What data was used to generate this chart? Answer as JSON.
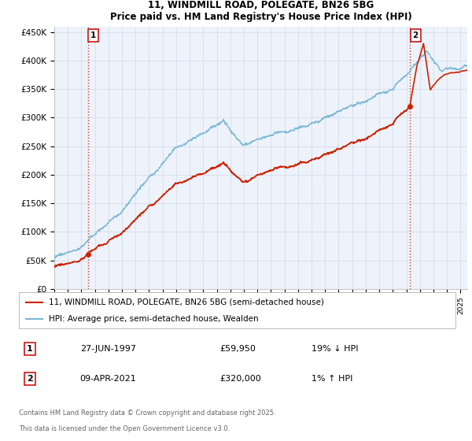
{
  "title_line1": "11, WINDMILL ROAD, POLEGATE, BN26 5BG",
  "title_line2": "Price paid vs. HM Land Registry's House Price Index (HPI)",
  "ylim": [
    0,
    460000
  ],
  "yticks": [
    0,
    50000,
    100000,
    150000,
    200000,
    250000,
    300000,
    350000,
    400000,
    450000
  ],
  "ytick_labels": [
    "£0",
    "£50K",
    "£100K",
    "£150K",
    "£200K",
    "£250K",
    "£300K",
    "£350K",
    "£400K",
    "£450K"
  ],
  "hpi_color": "#7bb8d4",
  "price_color": "#cc2200",
  "vline_color": "#cc2200",
  "plot_bg_color": "#eef2fa",
  "annotation1_label": "1",
  "annotation1_date": "27-JUN-1997",
  "annotation1_price": "£59,950",
  "annotation1_hpi": "19% ↓ HPI",
  "annotation1_year": 1997.49,
  "annotation1_value": 59950,
  "annotation2_label": "2",
  "annotation2_date": "09-APR-2021",
  "annotation2_price": "£320,000",
  "annotation2_hpi": "1% ↑ HPI",
  "annotation2_year": 2021.27,
  "annotation2_value": 320000,
  "legend_label1": "11, WINDMILL ROAD, POLEGATE, BN26 5BG (semi-detached house)",
  "legend_label2": "HPI: Average price, semi-detached house, Wealden",
  "footer_line1": "Contains HM Land Registry data © Crown copyright and database right 2025.",
  "footer_line2": "This data is licensed under the Open Government Licence v3.0.",
  "xmin": 1995,
  "xmax": 2025.5
}
